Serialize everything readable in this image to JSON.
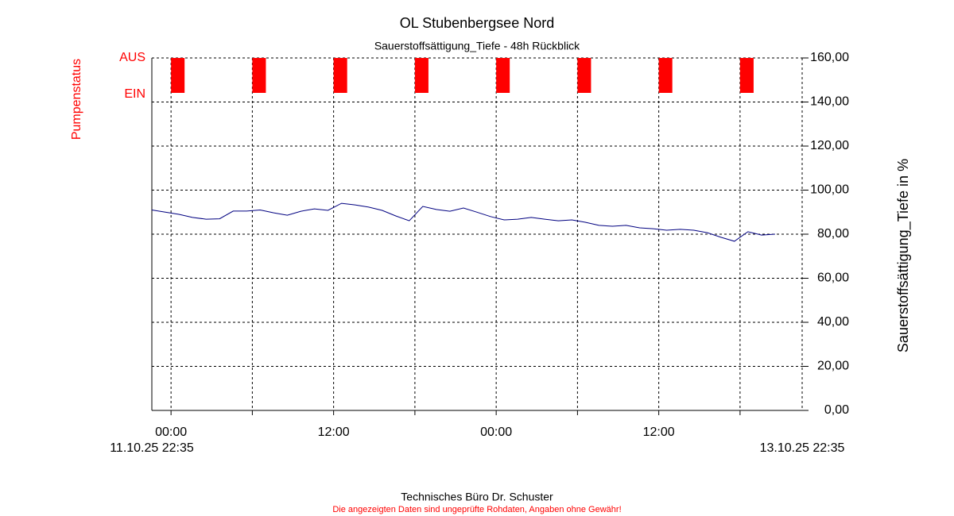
{
  "chart_data": {
    "type": "line",
    "title": "OL Stubenbergsee Nord",
    "subtitle": "Sauerstoffsättigung_Tiefe - 48h Rückblick",
    "ylabel": "Sauerstoffsättigung_Tiefe in %",
    "ylim": [
      0,
      160
    ],
    "yticks": [
      {
        "value": 0,
        "label": "0,00"
      },
      {
        "value": 20,
        "label": "20,00"
      },
      {
        "value": 40,
        "label": "40,00"
      },
      {
        "value": 60,
        "label": "60,00"
      },
      {
        "value": 80,
        "label": "80,00"
      },
      {
        "value": 100,
        "label": "100,00"
      },
      {
        "value": 120,
        "label": "120,00"
      },
      {
        "value": 140,
        "label": "140,00"
      },
      {
        "value": 160,
        "label": "160,00"
      }
    ],
    "xlim": [
      "11.10.25 22:35",
      "13.10.25 22:35"
    ],
    "xticks": [
      {
        "value": "12.10.25 00:00",
        "label": "00:00"
      },
      {
        "value": "12.10.25 12:00",
        "label": "12:00"
      },
      {
        "value": "13.10.25 00:00",
        "label": "00:00"
      },
      {
        "value": "13.10.25 12:00",
        "label": "12:00"
      }
    ],
    "xminorticks": [
      "12.10.25 06:00",
      "12.10.25 18:00",
      "13.10.25 06:00",
      "13.10.25 18:00"
    ],
    "grid": true,
    "series": [
      {
        "color": "#000080",
        "x": [
          "11.10.25 22:35",
          "11.10.25 23:35",
          "12.10.25 00:35",
          "12.10.25 01:35",
          "12.10.25 02:35",
          "12.10.25 03:35",
          "12.10.25 04:35",
          "12.10.25 05:35",
          "12.10.25 06:35",
          "12.10.25 07:35",
          "12.10.25 08:35",
          "12.10.25 09:35",
          "12.10.25 10:35",
          "12.10.25 11:35",
          "12.10.25 12:35",
          "12.10.25 13:35",
          "12.10.25 14:35",
          "12.10.25 15:35",
          "12.10.25 16:35",
          "12.10.25 17:35",
          "12.10.25 18:35",
          "12.10.25 19:35",
          "12.10.25 20:35",
          "12.10.25 21:35",
          "12.10.25 22:35",
          "12.10.25 23:35",
          "13.10.25 00:35",
          "13.10.25 01:35",
          "13.10.25 02:35",
          "13.10.25 03:35",
          "13.10.25 04:35",
          "13.10.25 05:35",
          "13.10.25 06:35",
          "13.10.25 07:35",
          "13.10.25 08:35",
          "13.10.25 09:35",
          "13.10.25 10:35",
          "13.10.25 11:35",
          "13.10.25 12:35",
          "13.10.25 13:35",
          "13.10.25 14:35",
          "13.10.25 15:35",
          "13.10.25 16:35",
          "13.10.25 17:35",
          "13.10.25 18:35",
          "13.10.25 19:35",
          "13.10.25 20:35"
        ],
        "values": [
          91,
          90,
          89,
          87.6,
          86.8,
          87,
          90.5,
          90.5,
          91,
          89.7,
          88.6,
          90.4,
          91.5,
          90.8,
          94,
          93.3,
          92.3,
          90.8,
          88.3,
          86.1,
          92.6,
          91.2,
          90.4,
          91.9,
          90,
          88,
          86.5,
          86.8,
          87.6,
          86.8,
          86.1,
          86.5,
          85.4,
          84,
          83.6,
          84,
          82.9,
          82.5,
          81.8,
          82.2,
          81.8,
          80.7,
          78.6,
          76.8,
          81.1,
          79.6,
          80
        ]
      }
    ],
    "pump": {
      "label": "Pumpenstatus",
      "states": [
        "EIN",
        "AUS"
      ],
      "color": "#ff0000",
      "on_intervals": [
        [
          "12.10.25 00:00",
          "12.10.25 01:00"
        ],
        [
          "12.10.25 06:00",
          "12.10.25 07:00"
        ],
        [
          "12.10.25 12:00",
          "12.10.25 13:00"
        ],
        [
          "12.10.25 18:00",
          "12.10.25 19:00"
        ],
        [
          "13.10.25 00:00",
          "13.10.25 01:00"
        ],
        [
          "13.10.25 06:00",
          "13.10.25 07:00"
        ],
        [
          "13.10.25 12:00",
          "13.10.25 13:00"
        ],
        [
          "13.10.25 18:00",
          "13.10.25 19:00"
        ]
      ]
    },
    "footer": "Technisches Büro Dr. Schuster",
    "disclaimer": "Die angezeigten Daten sind ungeprüfte Rohdaten, Angaben ohne Gewähr!"
  }
}
